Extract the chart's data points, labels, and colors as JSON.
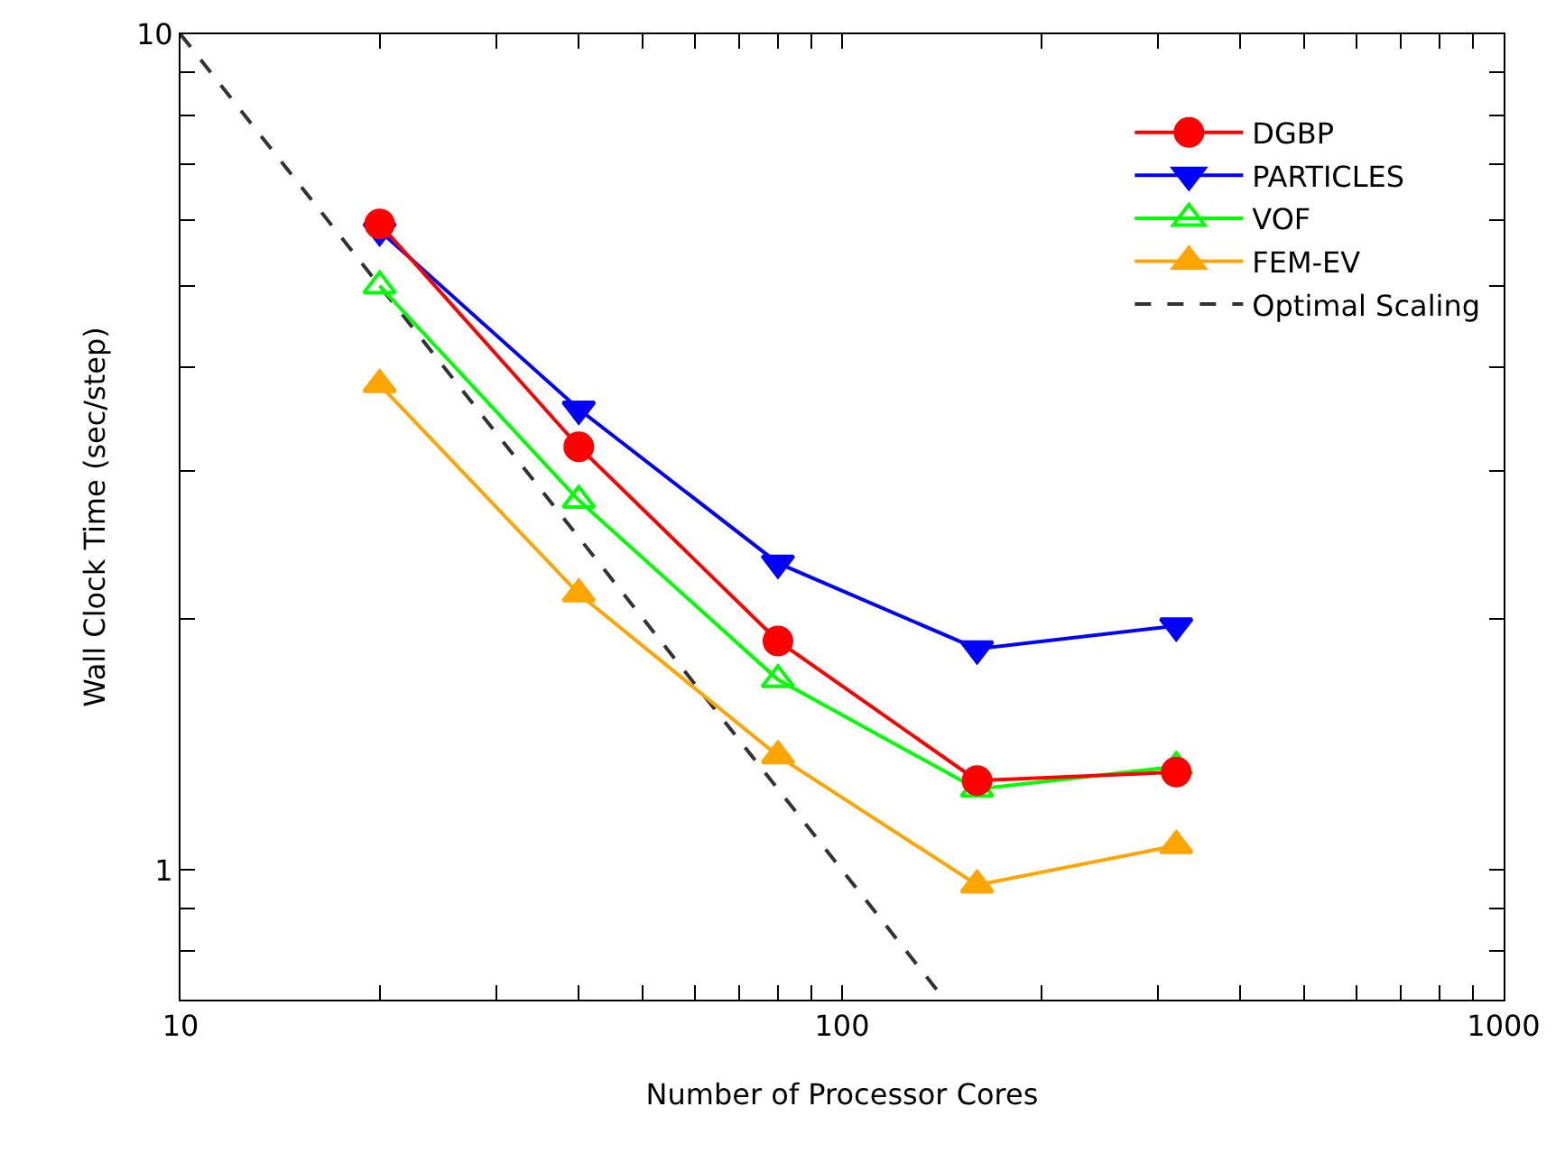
{
  "chart_data": {
    "type": "line",
    "xlabel": "Number of Processor Cores",
    "ylabel": "Wall Clock Time (sec/step)",
    "log": "xy",
    "grid": false,
    "legend": "top right",
    "xlim": [
      10,
      1000
    ],
    "xticks": [
      10,
      {
        "value": 20,
        "label": null
      },
      {
        "value": 30,
        "label": null
      },
      {
        "value": 40,
        "label": null
      },
      {
        "value": 50,
        "label": null
      },
      {
        "value": 60,
        "label": null
      },
      {
        "value": 70,
        "label": null
      },
      {
        "value": 80,
        "label": null
      },
      {
        "value": 90,
        "label": null
      },
      100,
      {
        "value": 200,
        "label": null
      },
      {
        "value": 300,
        "label": null
      },
      {
        "value": 400,
        "label": null
      },
      {
        "value": 500,
        "label": null
      },
      {
        "value": 600,
        "label": null
      },
      {
        "value": 700,
        "label": null
      },
      {
        "value": 800,
        "label": null
      },
      {
        "value": 900,
        "label": null
      },
      1000
    ],
    "ylim": [
      0.7,
      10
    ],
    "yticks": [
      {
        "value": 0.7,
        "label": null
      },
      {
        "value": 0.8,
        "label": null
      },
      {
        "value": 0.9,
        "label": null
      },
      1,
      {
        "value": 2,
        "label": null
      },
      {
        "value": 3,
        "label": null
      },
      {
        "value": 4,
        "label": null
      },
      {
        "value": 5,
        "label": null
      },
      {
        "value": 6,
        "label": null
      },
      {
        "value": 7,
        "label": null
      },
      {
        "value": 8,
        "label": null
      },
      {
        "value": 9,
        "label": null
      },
      10
    ],
    "x": [
      20,
      40,
      80,
      160,
      320
    ],
    "series": [
      {
        "name": "DGBP",
        "color": "#ff0000",
        "marker": "circle",
        "values": [
          5.93,
          3.21,
          1.88,
          1.28,
          1.31
        ]
      },
      {
        "name": "PARTICLES",
        "color": "#0000ff",
        "marker": "triangle-down",
        "values": [
          5.82,
          3.56,
          2.33,
          1.84,
          1.96
        ]
      },
      {
        "name": "VOF",
        "color": "#00ff00",
        "marker": "triangle-open",
        "values": [
          5.0,
          2.77,
          1.69,
          1.25,
          1.33
        ]
      },
      {
        "name": "FEM-EV",
        "color": "#ffa500",
        "marker": "triangle",
        "values": [
          3.81,
          2.14,
          1.37,
          0.96,
          1.07
        ]
      },
      {
        "name": "Optimal Scaling",
        "color": "#333333",
        "marker": "none",
        "line_style": "dashed",
        "x": [
          10,
          142.9
        ],
        "values": [
          10,
          0.7
        ]
      }
    ]
  }
}
